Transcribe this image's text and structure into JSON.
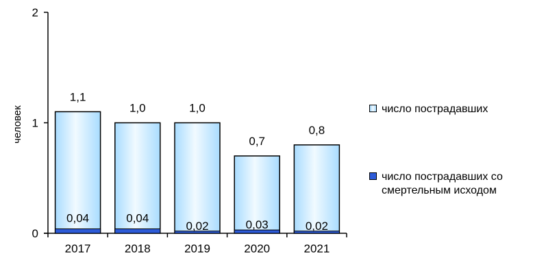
{
  "chart_data": {
    "type": "bar",
    "stacked": true,
    "categories": [
      "2017",
      "2018",
      "2019",
      "2020",
      "2021"
    ],
    "series": [
      {
        "name": "число пострадавших",
        "values": [
          1.1,
          1.0,
          1.0,
          0.7,
          0.8
        ],
        "labels": [
          "1,1",
          "1,0",
          "1,0",
          "0,7",
          "0,8"
        ],
        "color": "#d6eeff"
      },
      {
        "name": "число пострадавших со смертельным исходом",
        "values": [
          0.04,
          0.04,
          0.02,
          0.03,
          0.02
        ],
        "labels": [
          "0,04",
          "0,04",
          "0,02",
          "0,03",
          "0,02"
        ],
        "color": "#2d5bd8"
      }
    ],
    "ylabel": "человек",
    "ylim": [
      0,
      2
    ],
    "yticks": [
      "0",
      "1",
      "2"
    ],
    "grid": false,
    "legend_position": "right"
  },
  "legend": {
    "item1": "число пострадавших",
    "item2_line1": "число пострадавших со",
    "item2_line2": "смертельным исходом"
  }
}
